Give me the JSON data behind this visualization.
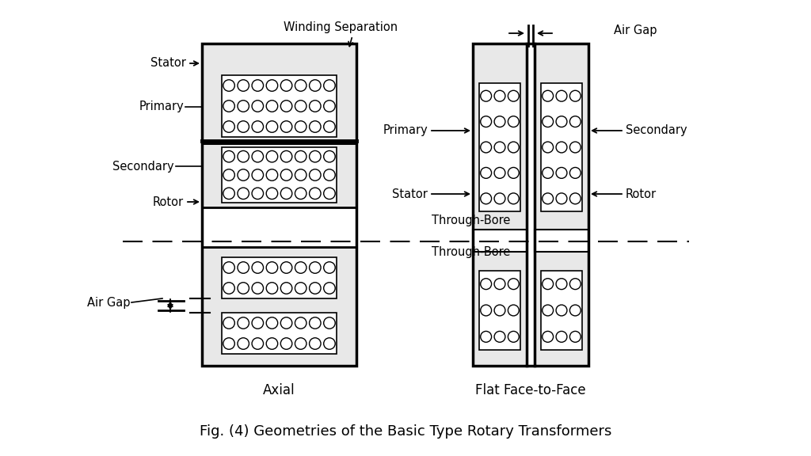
{
  "fig_title": "Fig. (4) Geometries of the Basic Type Rotary Transformers",
  "axial_label": "Axial",
  "flat_label": "Flat Face-to-Face",
  "winding_sep_label": "Winding Separation",
  "air_gap_label_top": "Air Gap",
  "air_gap_label_left": "Air Gap",
  "through_bore_top": "Through-Bore",
  "through_bore_bot": "Through-Bore",
  "bg_color": "#ffffff",
  "stipple_dot_color": "#555555",
  "line_color": "#000000"
}
